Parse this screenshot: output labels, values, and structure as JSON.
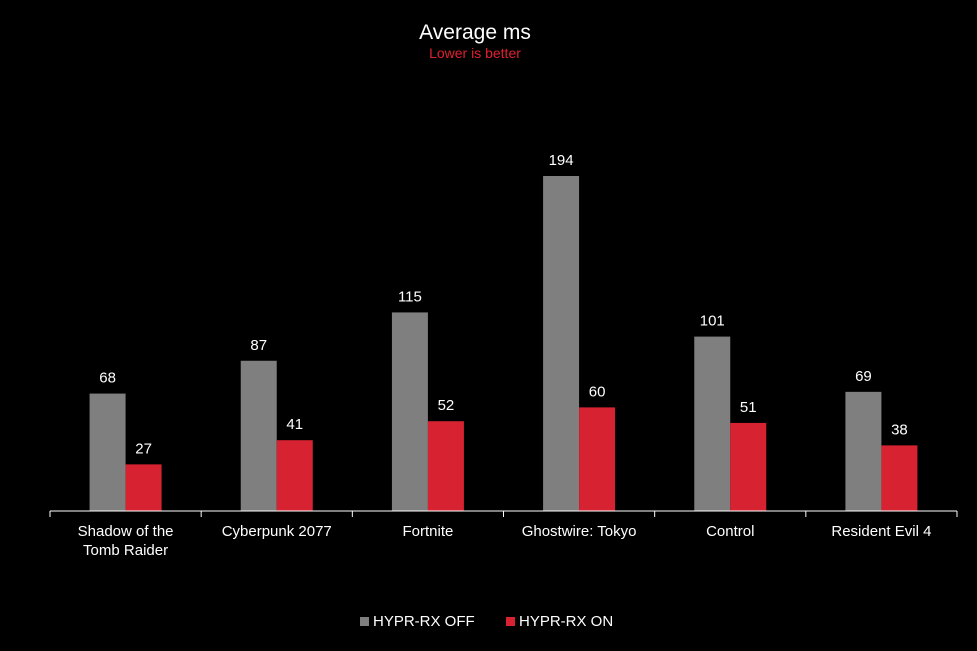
{
  "chart_data": {
    "type": "bar",
    "title": "Average ms",
    "subtitle": "Lower is better",
    "categories": [
      "Shadow of the Tomb Raider",
      "Cyberpunk 2077",
      "Fortnite",
      "Ghostwire: Tokyo",
      "Control",
      "Resident Evil 4"
    ],
    "category_lines": [
      [
        "Shadow of the",
        "Tomb Raider"
      ],
      [
        "Cyberpunk 2077"
      ],
      [
        "Fortnite"
      ],
      [
        "Ghostwire: Tokyo"
      ],
      [
        "Control"
      ],
      [
        "Resident Evil 4"
      ]
    ],
    "series": [
      {
        "name": "HYPR-RX OFF",
        "values": [
          68,
          87,
          115,
          194,
          101,
          69
        ],
        "color": "#7f7f7f"
      },
      {
        "name": "HYPR-RX ON",
        "values": [
          27,
          41,
          52,
          60,
          51,
          38
        ],
        "color": "#d72331"
      }
    ],
    "xlabel": "",
    "ylabel": "",
    "ylim": [
      0,
      194
    ],
    "grid": false,
    "legend_position": "bottom",
    "colors": {
      "background": "#000000",
      "text": "#ffffff",
      "subtitle": "#e0202e",
      "axis": "#ffffff"
    }
  }
}
